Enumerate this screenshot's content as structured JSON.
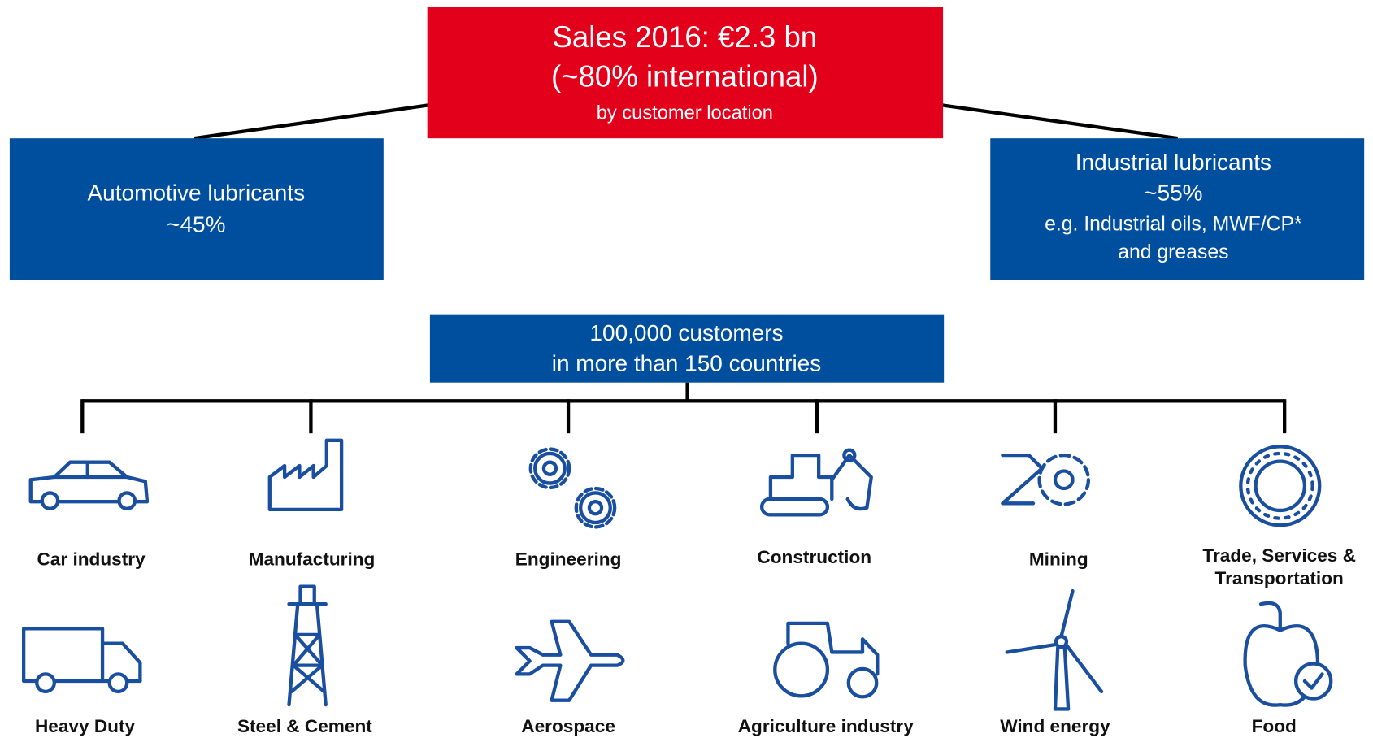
{
  "header": {
    "lines": [
      "Sales 2016: €2.3 bn",
      "(~80% international)",
      "by customer location"
    ]
  },
  "segments": [
    {
      "lines": [
        "Automotive lubricants",
        "~45%"
      ]
    },
    {
      "lines": [
        "Industrial lubricants",
        "~55%",
        "e.g. Industrial oils, MWF/CP*",
        "and greases"
      ]
    }
  ],
  "customers": {
    "lines": [
      "100,000 customers",
      "in more than 150 countries"
    ]
  },
  "industries": [
    [
      "Car industry"
    ],
    [
      "Manufacturing"
    ],
    [
      "Engineering"
    ],
    [
      "Construction"
    ],
    [
      "Mining"
    ],
    [
      "Trade, Services &",
      "Transportation"
    ],
    [
      "Heavy Duty"
    ],
    [
      "Steel & Cement"
    ],
    [
      "Aerospace"
    ],
    [
      "Agriculture industry"
    ],
    [
      "Wind energy"
    ],
    [
      "Food"
    ]
  ]
}
